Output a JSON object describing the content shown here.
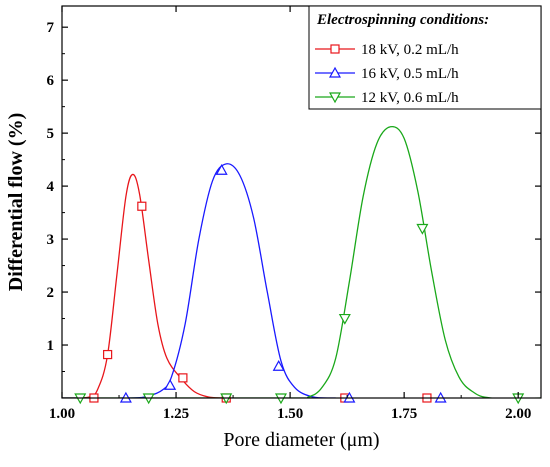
{
  "chart_data": {
    "type": "line",
    "xlabel": "Pore diameter (μm)",
    "ylabel": "Differential flow (%)",
    "xlim": [
      1.0,
      2.05
    ],
    "ylim": [
      0,
      7.4
    ],
    "x_ticks": [
      "1.00",
      "1.25",
      "1.50",
      "1.75",
      "2.00"
    ],
    "x_tick_values": [
      1.0,
      1.25,
      1.5,
      1.75,
      2.0
    ],
    "y_ticks": [
      "1",
      "2",
      "3",
      "4",
      "5",
      "6",
      "7"
    ],
    "y_tick_values": [
      1,
      2,
      3,
      4,
      5,
      6,
      7
    ],
    "legend": {
      "title": "Electrospinning conditions:",
      "position": "top-right"
    },
    "series": [
      {
        "name": "18 kV, 0.2 mL/h",
        "color": "#e8161b",
        "marker": "square",
        "x": [
          1.0,
          1.06,
          1.08,
          1.1,
          1.12,
          1.14,
          1.155,
          1.17,
          1.19,
          1.21,
          1.23,
          1.26,
          1.29,
          1.32,
          1.35
        ],
        "y": [
          0.0,
          0.02,
          0.2,
          0.82,
          2.3,
          3.8,
          4.22,
          3.85,
          2.6,
          1.4,
          0.75,
          0.38,
          0.12,
          0.02,
          0.0
        ],
        "markers": [
          {
            "x": 1.1,
            "y": 0.82
          },
          {
            "x": 1.175,
            "y": 3.62
          },
          {
            "x": 1.265,
            "y": 0.38
          },
          {
            "x": 1.07,
            "y": 0.0
          },
          {
            "x": 1.36,
            "y": 0.0
          },
          {
            "x": 1.62,
            "y": 0.0
          },
          {
            "x": 1.8,
            "y": 0.0
          }
        ]
      },
      {
        "name": "16 kV, 0.5 mL/h",
        "color": "#1a1aff",
        "marker": "triangle-up",
        "x": [
          1.0,
          1.15,
          1.19,
          1.22,
          1.24,
          1.27,
          1.3,
          1.33,
          1.36,
          1.39,
          1.42,
          1.45,
          1.48,
          1.51,
          1.55,
          1.6
        ],
        "y": [
          0.0,
          0.0,
          0.04,
          0.15,
          0.4,
          1.4,
          3.0,
          4.1,
          4.42,
          4.2,
          3.4,
          2.0,
          0.7,
          0.2,
          0.02,
          0.0
        ],
        "markers": [
          {
            "x": 1.237,
            "y": 0.24
          },
          {
            "x": 1.35,
            "y": 4.3
          },
          {
            "x": 1.475,
            "y": 0.6
          },
          {
            "x": 1.14,
            "y": 0.0
          },
          {
            "x": 1.63,
            "y": 0.0
          },
          {
            "x": 1.83,
            "y": 0.0
          }
        ]
      },
      {
        "name": "12 kV, 0.6 mL/h",
        "color": "#1aa81a",
        "marker": "triangle-down",
        "x": [
          1.0,
          1.5,
          1.54,
          1.57,
          1.6,
          1.63,
          1.66,
          1.69,
          1.72,
          1.75,
          1.78,
          1.81,
          1.84,
          1.87,
          1.9,
          1.94,
          2.05
        ],
        "y": [
          0.0,
          0.0,
          0.02,
          0.2,
          0.75,
          2.2,
          3.8,
          4.8,
          5.12,
          4.9,
          3.9,
          2.4,
          1.1,
          0.4,
          0.12,
          0.0,
          0.0
        ],
        "markers": [
          {
            "x": 1.62,
            "y": 1.5
          },
          {
            "x": 1.79,
            "y": 3.2
          },
          {
            "x": 1.04,
            "y": 0.0
          },
          {
            "x": 1.19,
            "y": 0.0
          },
          {
            "x": 1.36,
            "y": 0.0
          },
          {
            "x": 1.48,
            "y": 0.0
          },
          {
            "x": 2.0,
            "y": 0.0
          }
        ]
      }
    ]
  }
}
